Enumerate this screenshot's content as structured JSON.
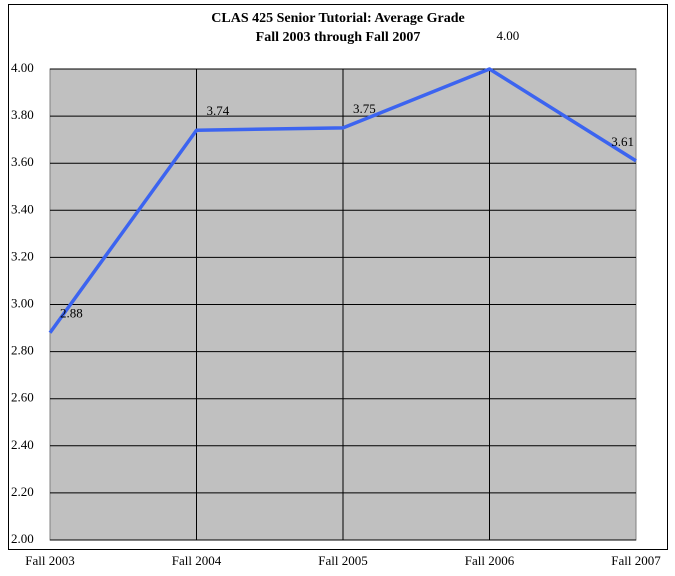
{
  "chart_data": {
    "type": "line",
    "title": "CLAS 425 Senior Tutorial: Average Grade",
    "subtitle": "Fall 2003 through Fall 2007",
    "categories": [
      "Fall 2003",
      "Fall 2004",
      "Fall 2005",
      "Fall 2006",
      "Fall 2007"
    ],
    "series": [
      {
        "name": "Average Grade",
        "color": "#3c64f0",
        "values": [
          2.88,
          3.74,
          3.75,
          4.0,
          3.61
        ],
        "value_labels": [
          "2.88",
          "3.74",
          "3.75",
          "4.00",
          "3.61"
        ]
      }
    ],
    "ylim": [
      2,
      4
    ],
    "yticks": [
      {
        "value": 2,
        "label": "2.00"
      },
      {
        "value": 2.2,
        "label": "2.20"
      },
      {
        "value": 2.4,
        "label": "2.40"
      },
      {
        "value": 2.6,
        "label": "2.60"
      },
      {
        "value": 2.8,
        "label": "2.80"
      },
      {
        "value": 3,
        "label": "3.00"
      },
      {
        "value": 3.2,
        "label": "3.20"
      },
      {
        "value": 3.4,
        "label": "3.40"
      },
      {
        "value": 3.6,
        "label": "3.60"
      },
      {
        "value": 3.8,
        "label": "3.80"
      },
      {
        "value": 4,
        "label": "4.00"
      }
    ],
    "grid": true,
    "plot_background": "#c0c0c0"
  }
}
